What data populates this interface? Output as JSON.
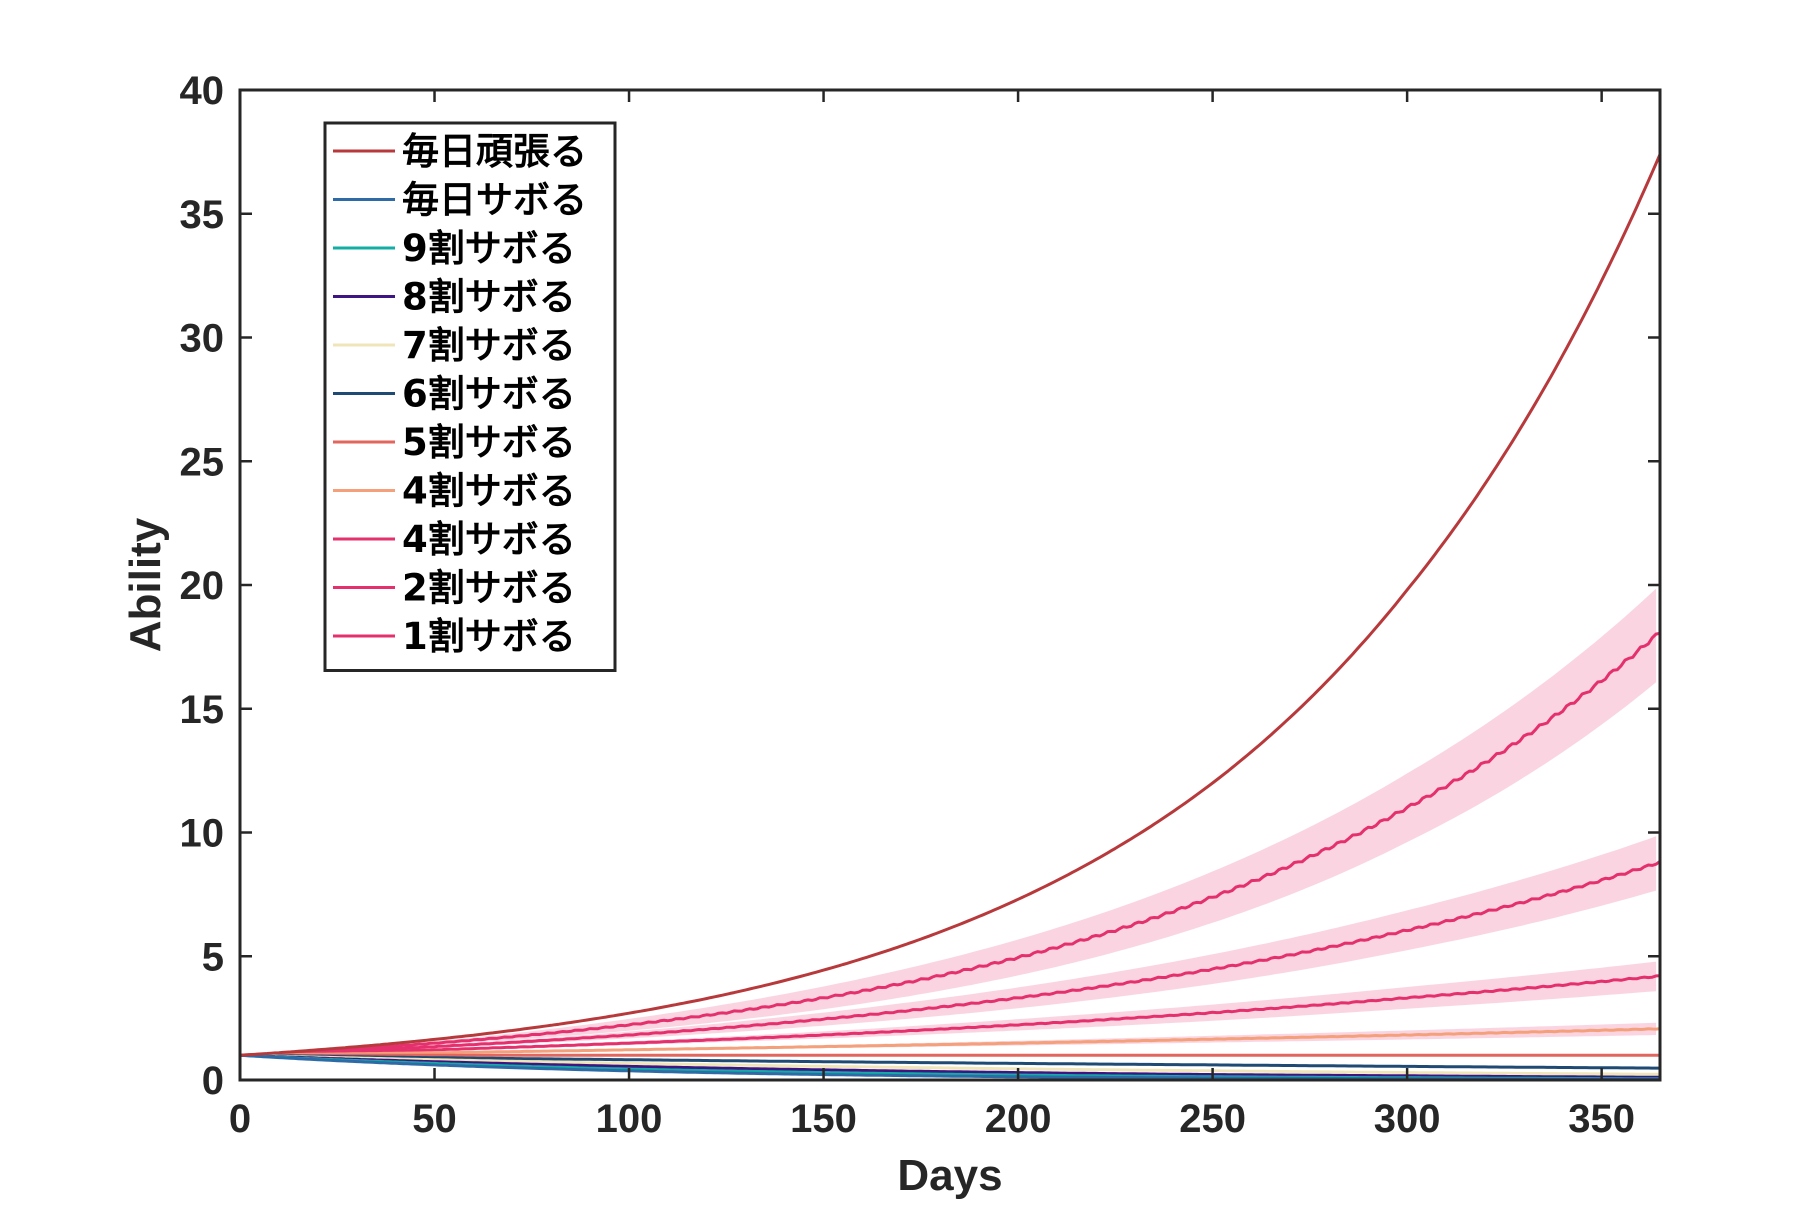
{
  "chart_data": {
    "type": "line",
    "xlabel": "Days",
    "ylabel": "Ability",
    "xlim": [
      0,
      365
    ],
    "ylim": [
      0,
      40
    ],
    "xticks": [
      0,
      50,
      100,
      150,
      200,
      250,
      300,
      350
    ],
    "yticks": [
      0,
      5,
      10,
      15,
      20,
      25,
      30,
      35,
      40
    ],
    "grid": false,
    "legend_position": "top-left",
    "x_sample_days": [
      0,
      50,
      100,
      150,
      200,
      250,
      300,
      365
    ],
    "series": [
      {
        "name": "毎日頑張る",
        "color": "#B8393B",
        "values": [
          1,
          1.64,
          2.7,
          4.44,
          7.3,
          12.0,
          19.8,
          37.4
        ]
      },
      {
        "name": "毎日サボる",
        "color": "#2E6AA6",
        "values": [
          1,
          0.61,
          0.37,
          0.22,
          0.13,
          0.08,
          0.05,
          0.03
        ]
      },
      {
        "name": "9割サボる",
        "color": "#14ADA5",
        "values": [
          1,
          0.67,
          0.44,
          0.3,
          0.2,
          0.13,
          0.09,
          0.05
        ]
      },
      {
        "name": "8割サボる",
        "color": "#3E1582",
        "values": [
          1,
          0.74,
          0.55,
          0.41,
          0.3,
          0.22,
          0.17,
          0.11
        ]
      },
      {
        "name": "7割サボる",
        "color": "#EFE5B8",
        "values": [
          1,
          0.82,
          0.67,
          0.55,
          0.45,
          0.37,
          0.3,
          0.23
        ]
      },
      {
        "name": "6割サボる",
        "color": "#1E4A74",
        "values": [
          1,
          0.9,
          0.82,
          0.74,
          0.67,
          0.61,
          0.55,
          0.48
        ]
      },
      {
        "name": "5割サボる",
        "color": "#E2665E",
        "values": [
          1,
          1.0,
          1.0,
          1.0,
          1.0,
          1.0,
          1.0,
          1.0
        ]
      },
      {
        "name": "4割サボる",
        "color": "#F4A07A",
        "values": [
          1,
          1.1,
          1.22,
          1.35,
          1.49,
          1.65,
          1.82,
          2.07
        ],
        "band": 0.25
      },
      {
        "name": "4割サボる",
        "color": "#E5306E",
        "values": [
          1,
          1.22,
          1.49,
          1.82,
          2.23,
          2.72,
          3.32,
          4.2
        ],
        "band": 0.6
      },
      {
        "name": "2割サボる",
        "color": "#E5306E",
        "values": [
          1,
          1.35,
          1.82,
          2.46,
          3.32,
          4.48,
          6.05,
          8.8
        ],
        "band": 1.1
      },
      {
        "name": "1割サボる",
        "color": "#E5306E",
        "values": [
          1,
          1.49,
          2.23,
          3.32,
          4.95,
          7.39,
          11.0,
          18.1
        ],
        "band": 1.9
      }
    ],
    "band_color": "#F6B3C8"
  }
}
